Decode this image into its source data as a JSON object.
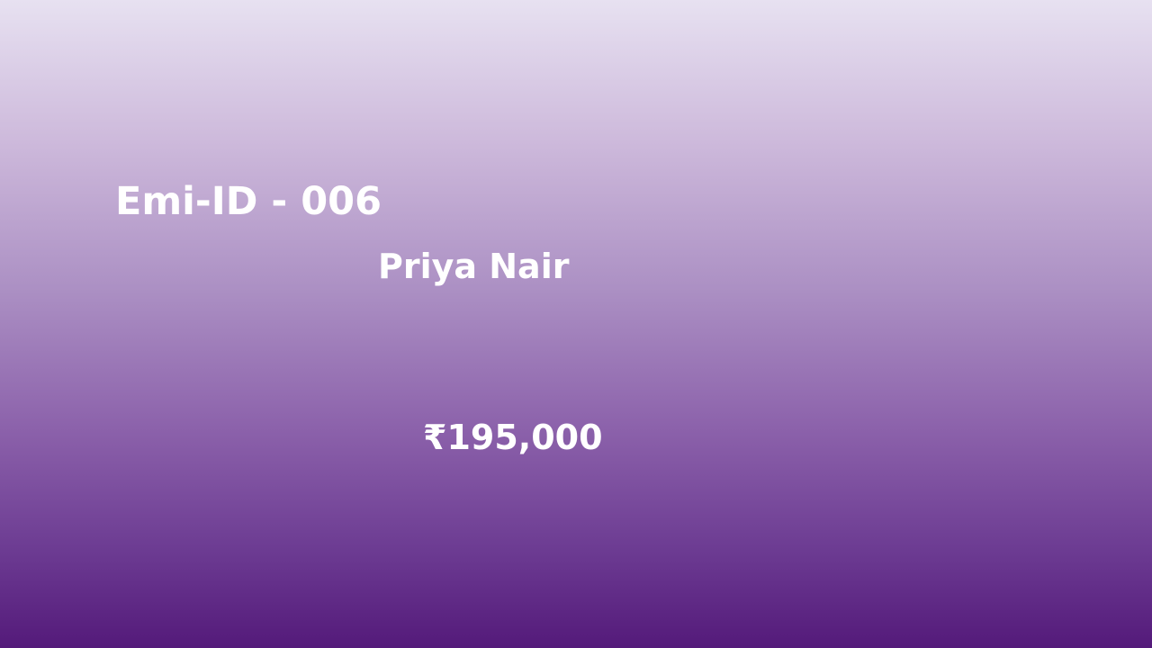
{
  "record": {
    "emi_id": "Emi-ID - 006",
    "name": "Priya Nair",
    "amount": "₹195,000"
  },
  "colors": {
    "text": "#ffffff",
    "gradient_top": "#e7e1f1",
    "gradient_bottom": "#541a7a"
  }
}
